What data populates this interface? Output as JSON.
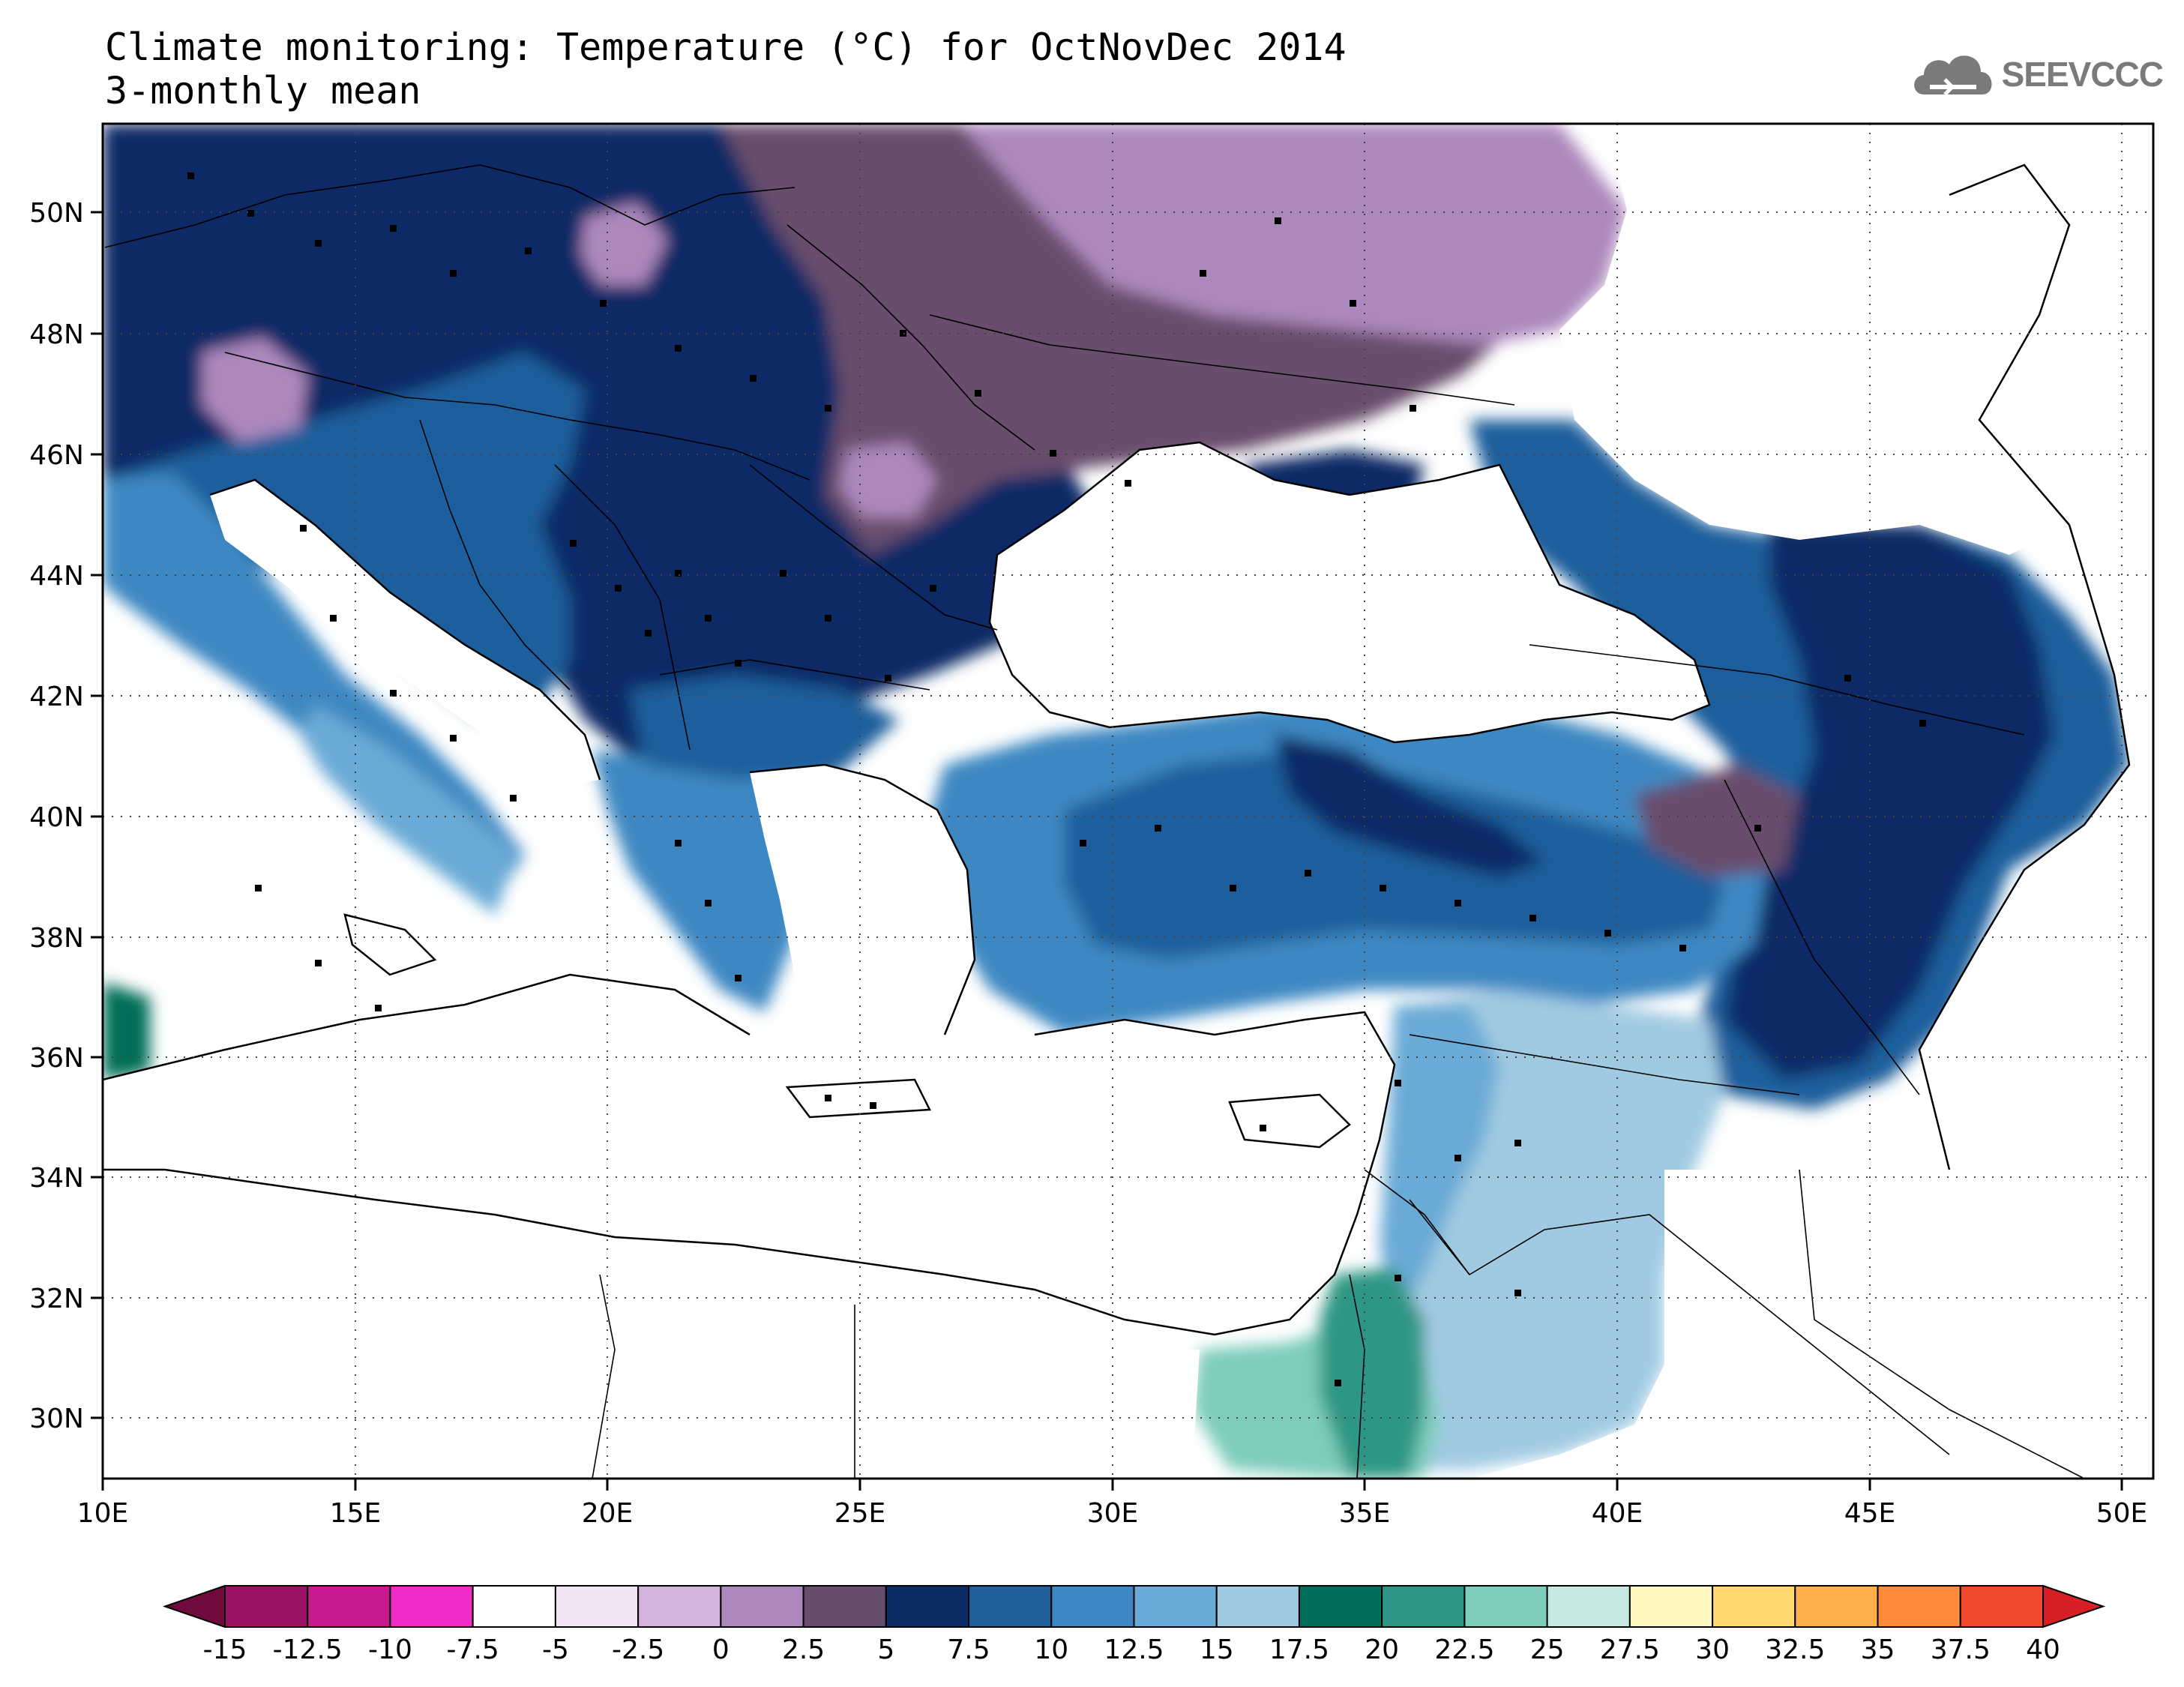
{
  "title": {
    "line1": "Climate monitoring: Temperature (°C) for OctNovDec 2014",
    "line2": "3-monthly mean"
  },
  "logo": {
    "text": "SEEVCCC",
    "icon": "cloud-icon"
  },
  "map": {
    "lon_range": [
      10,
      51
    ],
    "lat_range": [
      29,
      51.5
    ],
    "lon_ticks": [
      "10E",
      "15E",
      "20E",
      "25E",
      "30E",
      "35E",
      "40E",
      "45E",
      "50E"
    ],
    "lat_ticks": [
      "30N",
      "32N",
      "34N",
      "36N",
      "38N",
      "40N",
      "42N",
      "44N",
      "46N",
      "48N",
      "50N"
    ],
    "grid": "dotted"
  },
  "colorbar": {
    "levels": [
      "-15",
      "-12.5",
      "-10",
      "-7.5",
      "-5",
      "-2.5",
      "0",
      "2.5",
      "5",
      "7.5",
      "10",
      "12.5",
      "15",
      "17.5",
      "20",
      "22.5",
      "25",
      "27.5",
      "30",
      "32.5",
      "35",
      "37.5",
      "40"
    ],
    "colors": [
      "#6e0a3c",
      "#9c1265",
      "#c81a8f",
      "#f02cc8",
      "#ffffff",
      "#f1e3f3",
      "#d4b3dd",
      "#ad88bd",
      "#684d6c",
      "#0c2c66",
      "#1f5f9c",
      "#3d88c2",
      "#6aaad6",
      "#a0cae2",
      "#006e58",
      "#2e9684",
      "#7ecdbb",
      "#c5e9e0",
      "#fff8c0",
      "#ffd86e",
      "#ffb04a",
      "#ff8a3a",
      "#f24a2e",
      "#d91f26"
    ]
  }
}
